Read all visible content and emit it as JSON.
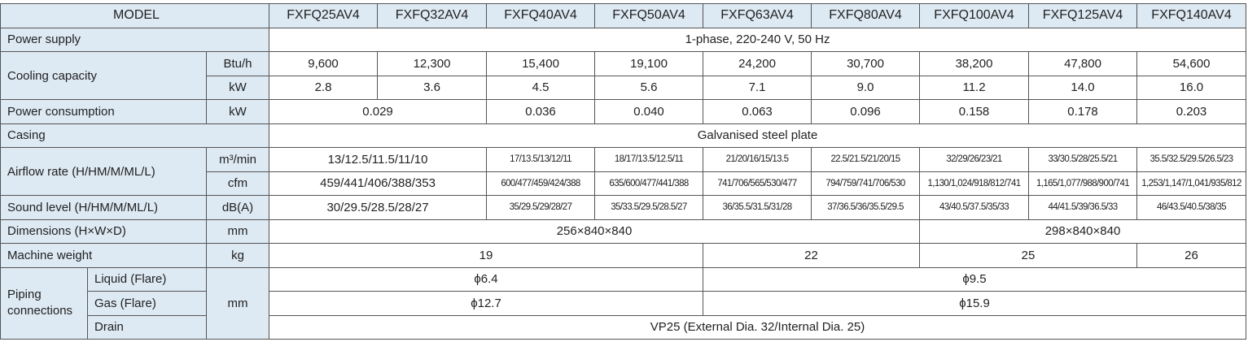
{
  "table": {
    "header": [
      "MODEL",
      "FXFQ25AV4",
      "FXFQ32AV4",
      "FXFQ40AV4",
      "FXFQ50AV4",
      "FXFQ63AV4",
      "FXFQ80AV4",
      "FXFQ100AV4",
      "FXFQ125AV4",
      "FXFQ140AV4"
    ],
    "rows": [
      {
        "label": "Power supply",
        "values": [
          [
            "1-phase, 220-240 V, 50 Hz"
          ]
        ]
      },
      {
        "label": "Cooling capacity",
        "units": [
          "Btu/h",
          "kW"
        ],
        "values": [
          [
            "9,600",
            "12,300",
            "15,400",
            "19,100",
            "24,200",
            "30,700",
            "38,200",
            "47,800",
            "54,600"
          ],
          [
            "2.8",
            "3.6",
            "4.5",
            "5.6",
            "7.1",
            "9.0",
            "11.2",
            "14.0",
            "16.0"
          ]
        ]
      },
      {
        "label": "Power consumption",
        "units": [
          "kW"
        ],
        "values": [
          [
            "0.029",
            "0.036",
            "0.040",
            "0.063",
            "0.096",
            "0.158",
            "0.178",
            "0.203"
          ]
        ]
      },
      {
        "label": "Casing",
        "values": [
          [
            "Galvanised steel plate"
          ]
        ]
      },
      {
        "label": "Airflow rate (H/HM/M/ML/L)",
        "units": [
          "m³/min",
          "cfm"
        ],
        "values": [
          [
            "13/12.5/11.5/11/10",
            "17/13.5/13/12/11",
            "18/17/13.5/12.5/11",
            "21/20/16/15/13.5",
            "22.5/21.5/21/20/15",
            "32/29/26/23/21",
            "33/30.5/28/25.5/21",
            "35.5/32.5/29.5/26.5/23"
          ],
          [
            "459/441/406/388/353",
            "600/477/459/424/388",
            "635/600/477/441/388",
            "741/706/565/530/477",
            "794/759/741/706/530",
            "1,130/1,024/918/812/741",
            "1,165/1,077/988/900/741",
            "1,253/1,147/1,041/935/812"
          ]
        ]
      },
      {
        "label": "Sound level (H/HM/M/ML/L)",
        "units": [
          "dB(A)"
        ],
        "values": [
          [
            "30/29.5/28.5/28/27",
            "35/29.5/29/28/27",
            "35/33.5/29.5/28.5/27",
            "36/35.5/31.5/31/28",
            "37/36.5/36/35.5/29.5",
            "43/40.5/37.5/35/33",
            "44/41.5/39/36.5/33",
            "46/43.5/40.5/38/35"
          ]
        ]
      },
      {
        "label": "Dimensions (H×W×D)",
        "units": [
          "mm"
        ],
        "values": [
          [
            "256×840×840",
            "298×840×840"
          ]
        ]
      },
      {
        "label": "Machine weight",
        "units": [
          "kg"
        ],
        "values": [
          [
            "19",
            "22",
            "25",
            "26"
          ]
        ]
      },
      {
        "label": "Piping connections",
        "units": [
          "mm"
        ],
        "sub": [
          {
            "label": "Liquid (Flare)",
            "values": [
              "ϕ6.4",
              "ϕ9.5"
            ]
          },
          {
            "label": "Gas (Flare)",
            "values": [
              "ϕ12.7",
              "ϕ15.9"
            ]
          },
          {
            "label": "Drain",
            "values": [
              "VP25 (External Dia. 32/Internal Dia. 25)"
            ]
          }
        ]
      }
    ]
  }
}
